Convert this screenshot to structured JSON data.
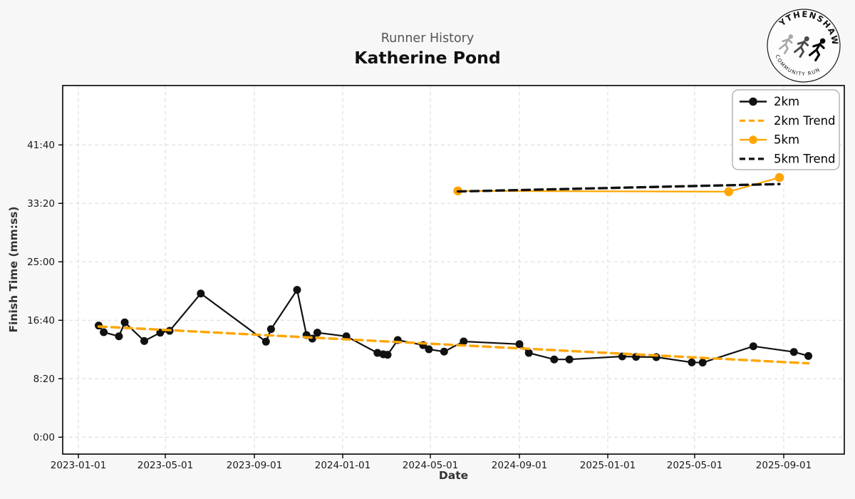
{
  "header": {
    "subtitle": "Runner History",
    "title": "Katherine Pond"
  },
  "logo": {
    "top_text": "WYTHENSHAWE",
    "bottom_text": "COMMUNITY RUN",
    "runner_colors": [
      "#a8a8a8",
      "#4a4a4a",
      "#000000"
    ]
  },
  "colors": {
    "accent_orange": "#FFA500",
    "series_black": "#111111",
    "grid": "#d9d9d9",
    "figure_bg": "#f7f7f7",
    "plot_bg": "#ffffff",
    "subtitle_gray": "#555555"
  },
  "chart_data": {
    "type": "line",
    "title": "Runner History",
    "subtitle": "Katherine Pond",
    "xlabel": "Date",
    "ylabel": "Finish Time (mm:ss)",
    "grid": true,
    "legend_position": "upper right",
    "x_ticks": [
      "2023-01-01",
      "2023-05-01",
      "2023-09-01",
      "2024-01-01",
      "2024-05-01",
      "2024-09-01",
      "2025-01-01",
      "2025-05-01",
      "2025-09-01"
    ],
    "y_ticks": [
      "0:00",
      "8:20",
      "16:40",
      "25:00",
      "33:20",
      "41:40"
    ],
    "y_range_seconds": [
      -145,
      3010
    ],
    "x_axis_range": [
      "2022-12-10",
      "2025-11-23"
    ],
    "series": [
      {
        "name": "2km",
        "color": "#111111",
        "style": "solid",
        "markers": true,
        "points": [
          {
            "date": "2023-01-29",
            "time": "15:55"
          },
          {
            "date": "2023-02-05",
            "time": "14:58"
          },
          {
            "date": "2023-02-26",
            "time": "14:23"
          },
          {
            "date": "2023-03-06",
            "time": "16:22"
          },
          {
            "date": "2023-04-02",
            "time": "13:43"
          },
          {
            "date": "2023-04-24",
            "time": "14:54"
          },
          {
            "date": "2023-05-07",
            "time": "15:10"
          },
          {
            "date": "2023-06-19",
            "time": "20:29"
          },
          {
            "date": "2023-09-17",
            "time": "13:37"
          },
          {
            "date": "2023-09-24",
            "time": "15:24"
          },
          {
            "date": "2023-10-30",
            "time": "21:00"
          },
          {
            "date": "2023-11-12",
            "time": "14:34"
          },
          {
            "date": "2023-11-20",
            "time": "14:03"
          },
          {
            "date": "2023-11-27",
            "time": "14:54"
          },
          {
            "date": "2024-01-06",
            "time": "14:23"
          },
          {
            "date": "2024-02-18",
            "time": "12:01"
          },
          {
            "date": "2024-02-26",
            "time": "11:49"
          },
          {
            "date": "2024-03-03",
            "time": "11:45"
          },
          {
            "date": "2024-03-17",
            "time": "13:51"
          },
          {
            "date": "2024-04-21",
            "time": "13:08"
          },
          {
            "date": "2024-04-29",
            "time": "12:32"
          },
          {
            "date": "2024-05-20",
            "time": "12:12"
          },
          {
            "date": "2024-06-16",
            "time": "13:39"
          },
          {
            "date": "2024-09-01",
            "time": "13:16"
          },
          {
            "date": "2024-09-14",
            "time": "12:01"
          },
          {
            "date": "2024-10-19",
            "time": "11:05"
          },
          {
            "date": "2024-11-09",
            "time": "11:05"
          },
          {
            "date": "2025-01-21",
            "time": "11:31"
          },
          {
            "date": "2025-02-09",
            "time": "11:27"
          },
          {
            "date": "2025-03-09",
            "time": "11:25"
          },
          {
            "date": "2025-04-27",
            "time": "10:40"
          },
          {
            "date": "2025-05-12",
            "time": "10:38"
          },
          {
            "date": "2025-07-21",
            "time": "12:58"
          },
          {
            "date": "2025-09-15",
            "time": "12:09"
          },
          {
            "date": "2025-10-05",
            "time": "11:35"
          }
        ]
      },
      {
        "name": "2km Trend",
        "color": "#FFA500",
        "style": "dashed",
        "markers": false,
        "points": [
          {
            "date": "2023-01-29",
            "time": "15:47"
          },
          {
            "date": "2025-10-05",
            "time": "10:32"
          }
        ]
      },
      {
        "name": "5km",
        "color": "#FFA500",
        "style": "solid",
        "markers": true,
        "points": [
          {
            "date": "2024-06-08",
            "time": "35:07"
          },
          {
            "date": "2025-06-17",
            "time": "35:00"
          },
          {
            "date": "2025-08-26",
            "time": "37:01"
          }
        ]
      },
      {
        "name": "5km Trend",
        "color": "#111111",
        "style": "dashed",
        "markers": false,
        "points": [
          {
            "date": "2024-06-08",
            "time": "35:02"
          },
          {
            "date": "2025-08-26",
            "time": "36:05"
          }
        ]
      }
    ],
    "legend_labels": [
      "2km",
      "2km Trend",
      "5km",
      "5km Trend"
    ]
  }
}
